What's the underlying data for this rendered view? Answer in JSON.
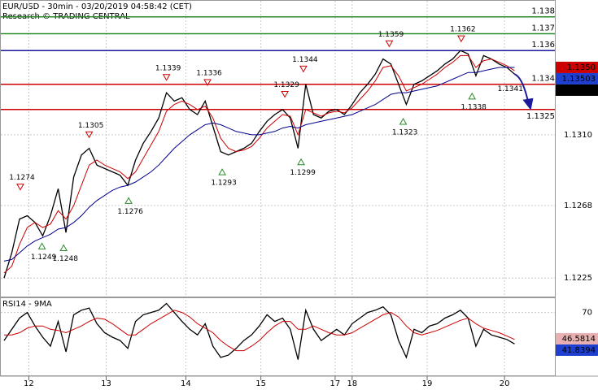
{
  "chart_data": [
    {
      "type": "line",
      "title": "EUR/USD - 30min - 03/20/2019 04:58:42 (CET)",
      "subtitle": "Research © TRADING CENTRAL",
      "x": [
        0,
        1,
        2,
        3,
        4,
        5,
        6,
        7,
        8,
        9,
        10,
        11,
        12,
        13,
        14,
        15,
        16,
        17,
        18,
        19,
        20,
        21,
        22,
        23,
        24,
        25,
        26,
        27,
        28,
        29,
        30,
        31,
        32,
        33,
        34,
        35,
        36,
        37,
        38,
        39,
        40,
        41,
        42,
        43,
        44,
        45,
        46,
        47,
        48,
        49,
        50,
        51,
        52,
        53,
        54,
        55,
        56,
        57,
        58,
        59,
        60,
        61,
        62,
        63,
        64,
        65,
        66
      ],
      "series": [
        {
          "color": "#000000",
          "values": [
            1.1225,
            1.124,
            1.126,
            1.1262,
            1.1258,
            1.125,
            1.1262,
            1.1278,
            1.1252,
            1.1285,
            1.1298,
            1.1302,
            1.1292,
            1.129,
            1.1288,
            1.1286,
            1.128,
            1.1295,
            1.1305,
            1.1312,
            1.132,
            1.1335,
            1.133,
            1.1332,
            1.1325,
            1.1322,
            1.133,
            1.1315,
            1.13,
            1.1298,
            1.13,
            1.1302,
            1.1305,
            1.1312,
            1.1318,
            1.1322,
            1.1325,
            1.132,
            1.1302,
            1.134,
            1.1322,
            1.132,
            1.1324,
            1.1325,
            1.1322,
            1.1328,
            1.1335,
            1.134,
            1.1346,
            1.1355,
            1.1352,
            1.134,
            1.1328,
            1.134,
            1.1342,
            1.1345,
            1.1348,
            1.1352,
            1.1355,
            1.136,
            1.1358,
            1.1345,
            1.1357,
            1.1355,
            1.1352,
            1.135,
            1.1346
          ]
        },
        {
          "color": "#cc0000",
          "values": [
            1.1228,
            1.1232,
            1.1245,
            1.1255,
            1.1258,
            1.1255,
            1.1257,
            1.1265,
            1.126,
            1.1268,
            1.128,
            1.1292,
            1.1295,
            1.1292,
            1.129,
            1.1288,
            1.1284,
            1.1288,
            1.1296,
            1.1304,
            1.1312,
            1.1324,
            1.1328,
            1.133,
            1.1328,
            1.1325,
            1.1327,
            1.132,
            1.1308,
            1.1302,
            1.13,
            1.1301,
            1.1303,
            1.1308,
            1.1314,
            1.1318,
            1.1322,
            1.1321,
            1.131,
            1.1325,
            1.1323,
            1.1321,
            1.1323,
            1.1324,
            1.1323,
            1.1326,
            1.1331,
            1.1336,
            1.1342,
            1.135,
            1.1351,
            1.1345,
            1.1336,
            1.1338,
            1.134,
            1.1343,
            1.1346,
            1.135,
            1.1353,
            1.1357,
            1.1357,
            1.135,
            1.1354,
            1.1355,
            1.1353,
            1.1351,
            1.1348
          ]
        },
        {
          "color": "#00008b",
          "values": [
            1.1235,
            1.1236,
            1.124,
            1.1244,
            1.1247,
            1.1249,
            1.1251,
            1.1254,
            1.1255,
            1.1258,
            1.1262,
            1.1267,
            1.1271,
            1.1274,
            1.1277,
            1.1279,
            1.128,
            1.1282,
            1.1285,
            1.1288,
            1.1292,
            1.1297,
            1.1302,
            1.1306,
            1.131,
            1.1313,
            1.1316,
            1.1317,
            1.1316,
            1.1314,
            1.1312,
            1.1311,
            1.131,
            1.131,
            1.1311,
            1.1312,
            1.1314,
            1.1315,
            1.1314,
            1.1316,
            1.1317,
            1.1318,
            1.1319,
            1.132,
            1.1321,
            1.1322,
            1.1324,
            1.1326,
            1.1328,
            1.1331,
            1.1334,
            1.1335,
            1.1335,
            1.1336,
            1.1337,
            1.1338,
            1.1339,
            1.1341,
            1.1343,
            1.1345,
            1.1347,
            1.1347,
            1.1348,
            1.1349,
            1.135,
            1.135,
            1.135
          ]
        }
      ],
      "xlim": [
        0,
        71
      ],
      "xticks": [
        {
          "value": 3.2,
          "label": "12"
        },
        {
          "value": 13.2,
          "label": "13"
        },
        {
          "value": 23.5,
          "label": "14"
        },
        {
          "value": 33.2,
          "label": "15"
        },
        {
          "value": 42.8,
          "label": "17"
        },
        {
          "value": 45,
          "label": "18"
        },
        {
          "value": 54.7,
          "label": "19"
        },
        {
          "value": 64.7,
          "label": "20"
        }
      ],
      "ylim": [
        1.1214,
        1.139
      ],
      "yticks": [
        1.1225,
        1.1268,
        {
          "value": 1.131,
          "label": "1.1310"
        }
      ],
      "grid": true,
      "levels": [
        {
          "value": 1.138,
          "color": "#2a8a2a"
        },
        {
          "value": 1.137,
          "color": "#2a8a2a"
        },
        {
          "value": 1.136,
          "color": "#1a1a9a"
        },
        {
          "value": 1.134,
          "color": "#cc0000"
        },
        {
          "value": 1.1325,
          "color": "#cc0000"
        }
      ],
      "price_tags": [
        {
          "value": 1.135,
          "label": "1.1350",
          "color": "#cc0000"
        },
        {
          "value": 1.13503,
          "color": "#1f3fd0"
        },
        {
          "value": 1.13454,
          "color": "#000000"
        }
      ],
      "annotations": [
        {
          "x": 2.1,
          "value": 1.1274,
          "kind": "high"
        },
        {
          "x": 11,
          "value": 1.1305,
          "kind": "high"
        },
        {
          "x": 21,
          "value": 1.1339,
          "kind": "high"
        },
        {
          "x": 26.3,
          "value": 1.1336,
          "kind": "high"
        },
        {
          "x": 36.3,
          "value": 1.1329,
          "kind": "high"
        },
        {
          "x": 38.7,
          "value": 1.1344,
          "kind": "high"
        },
        {
          "x": 49.8,
          "value": 1.1359,
          "kind": "high"
        },
        {
          "x": 59.1,
          "value": 1.1362,
          "kind": "high"
        },
        {
          "x": 4.9,
          "value": 1.1249,
          "kind": "low"
        },
        {
          "x": 7.7,
          "value": 1.1248,
          "kind": "low"
        },
        {
          "x": 16.1,
          "value": 1.1276,
          "kind": "low"
        },
        {
          "x": 28.2,
          "value": 1.1293,
          "kind": "low"
        },
        {
          "x": 38.4,
          "value": 1.1299,
          "kind": "low"
        },
        {
          "x": 51.6,
          "value": 1.1323,
          "kind": "low"
        },
        {
          "x": 60.5,
          "value": 1.1338,
          "kind": "low"
        },
        {
          "x": 66.5,
          "value": 1.1341,
          "kind": "note"
        }
      ]
    },
    {
      "type": "line",
      "title": "RSI14 - 9MA",
      "x": [
        0,
        1,
        2,
        3,
        4,
        5,
        6,
        7,
        8,
        9,
        10,
        11,
        12,
        13,
        14,
        15,
        16,
        17,
        18,
        19,
        20,
        21,
        22,
        23,
        24,
        25,
        26,
        27,
        28,
        29,
        30,
        31,
        32,
        33,
        34,
        35,
        36,
        37,
        38,
        39,
        40,
        41,
        42,
        43,
        44,
        45,
        46,
        47,
        48,
        49,
        50,
        51,
        52,
        53,
        54,
        55,
        56,
        57,
        58,
        59,
        60,
        61,
        62,
        63,
        64,
        65,
        66
      ],
      "series": [
        {
          "color": "#000000",
          "values": [
            45,
            55,
            65,
            70,
            58,
            48,
            40,
            62,
            35,
            68,
            72,
            74,
            60,
            52,
            48,
            45,
            38,
            62,
            68,
            70,
            72,
            78,
            70,
            62,
            55,
            50,
            60,
            40,
            30,
            32,
            38,
            45,
            50,
            58,
            68,
            62,
            65,
            55,
            28,
            72,
            55,
            45,
            50,
            55,
            50,
            60,
            65,
            70,
            72,
            75,
            68,
            45,
            30,
            55,
            52,
            58,
            60,
            65,
            68,
            72,
            65,
            40,
            55,
            50,
            48,
            46,
            42
          ]
        },
        {
          "color": "#cc0000",
          "values": [
            50,
            50,
            52,
            56,
            58,
            58,
            55,
            54,
            52,
            55,
            58,
            62,
            65,
            64,
            60,
            55,
            50,
            50,
            55,
            60,
            64,
            68,
            72,
            70,
            66,
            60,
            56,
            52,
            45,
            40,
            36,
            36,
            40,
            45,
            52,
            58,
            62,
            62,
            55,
            55,
            58,
            55,
            52,
            50,
            50,
            52,
            56,
            60,
            64,
            68,
            70,
            66,
            58,
            52,
            50,
            52,
            54,
            57,
            60,
            63,
            65,
            60,
            56,
            54,
            52,
            49,
            46
          ]
        }
      ],
      "xlim": [
        0,
        71
      ],
      "ylim": [
        14,
        82
      ],
      "yticks": [
        70
      ],
      "grid": true,
      "price_tags": [
        {
          "value": 46.5814,
          "color": "#e8b0b0",
          "text_color": "#000000"
        },
        {
          "value": 41.8394,
          "color": "#1f3fd0"
        }
      ]
    }
  ]
}
